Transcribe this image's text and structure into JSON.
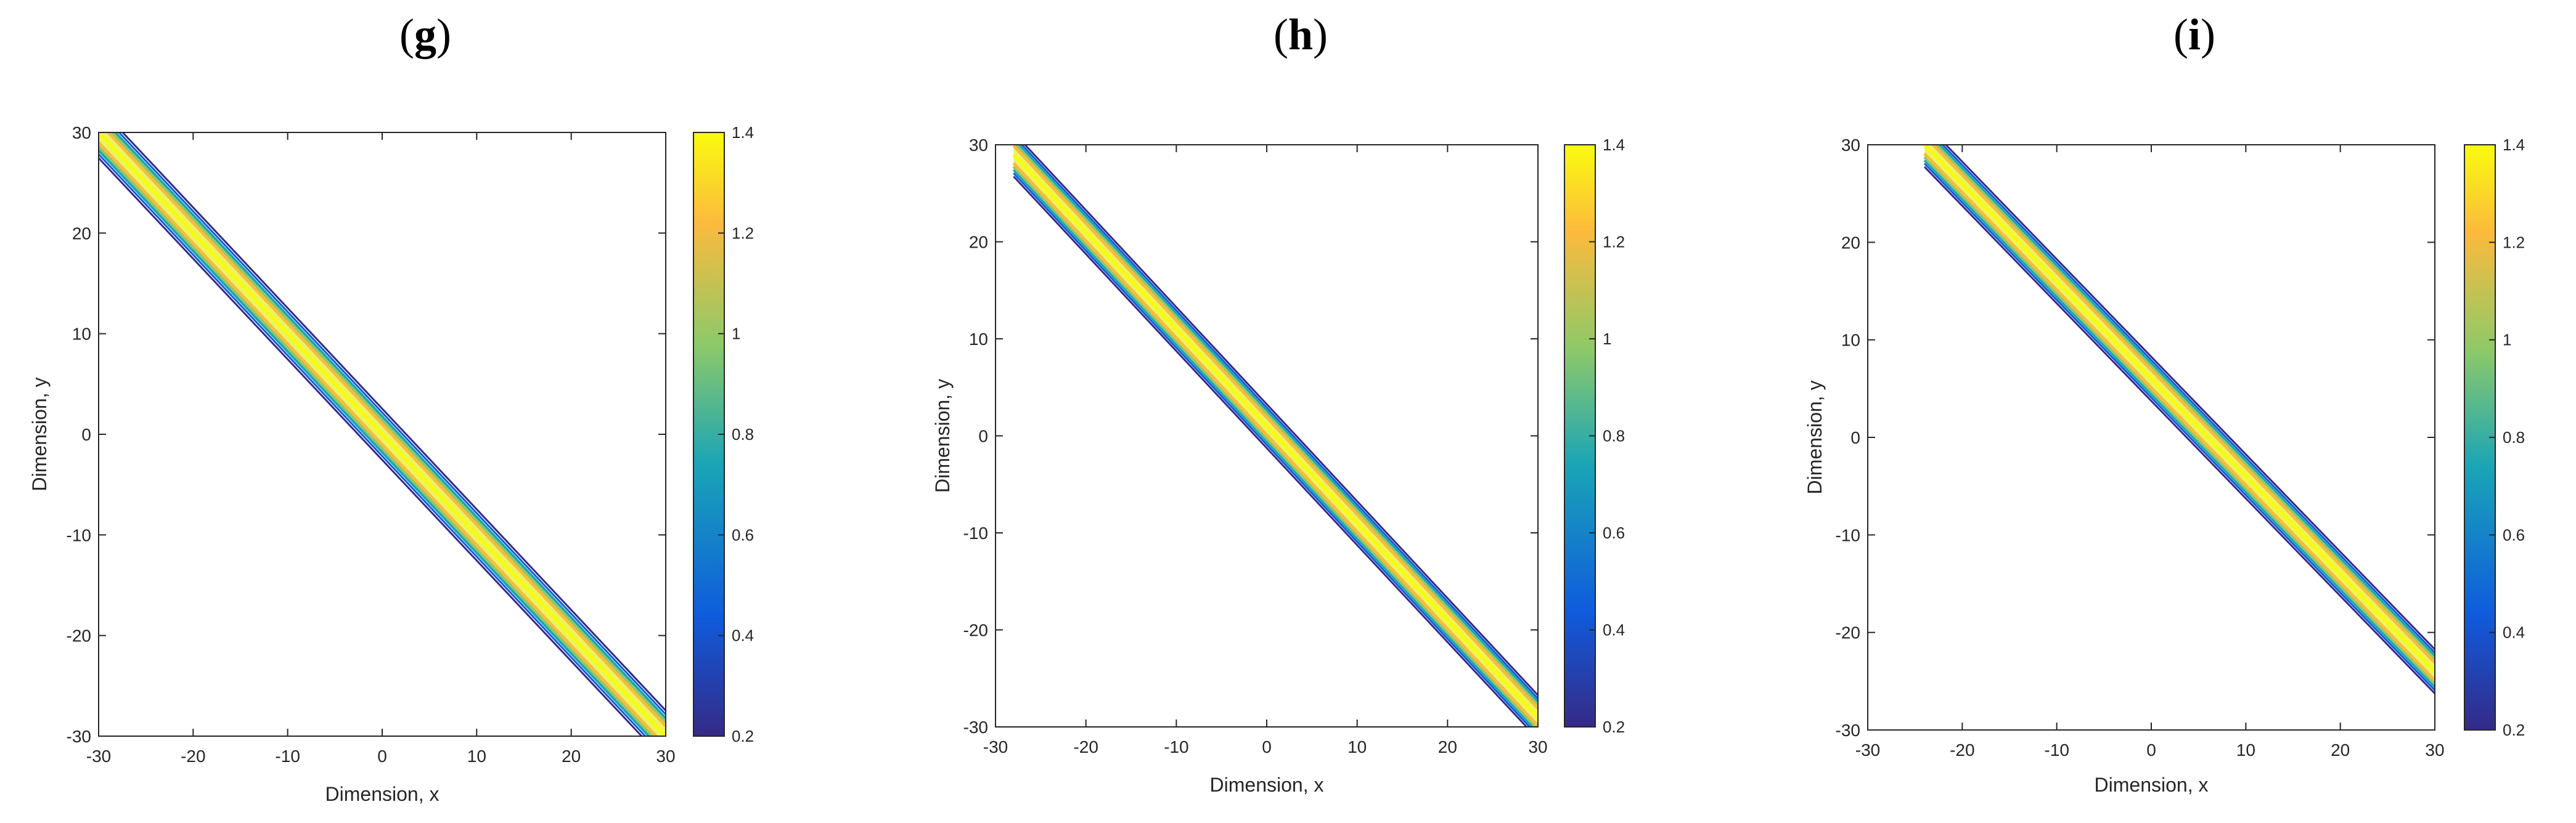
{
  "chart_data": [
    {
      "type": "contour",
      "panel_label_open": "(",
      "panel_label_letter": "g",
      "panel_label_close": ")",
      "xlabel": "Dimension, x",
      "ylabel": "Dimension, y",
      "xlim": [
        -30,
        30
      ],
      "ylim": [
        -30,
        30
      ],
      "xticks": [
        -30,
        -20,
        -10,
        0,
        10,
        20,
        30
      ],
      "yticks": [
        30,
        20,
        10,
        0,
        -10,
        -20,
        -30
      ],
      "colorbar": {
        "range": [
          0.2,
          1.4
        ],
        "ticks": [
          "1.4",
          "1.2",
          "1",
          "0.8",
          "0.6",
          "0.4",
          "0.2"
        ]
      },
      "band": {
        "line": "y = -x",
        "x_start": -30,
        "x_end": 30,
        "y_offset": 0,
        "half_width": 1.8,
        "peak": 1.4
      }
    },
    {
      "type": "contour",
      "panel_label_open": "(",
      "panel_label_letter": "h",
      "panel_label_close": ")",
      "xlabel": "Dimension, x",
      "ylabel": "Dimension, y",
      "xlim": [
        -30,
        30
      ],
      "ylim": [
        -30,
        30
      ],
      "xticks": [
        -30,
        -20,
        -10,
        0,
        10,
        20,
        30
      ],
      "yticks": [
        30,
        20,
        10,
        0,
        -10,
        -20,
        -30
      ],
      "colorbar": {
        "range": [
          0.2,
          1.4
        ],
        "ticks": [
          "1.4",
          "1.2",
          "1",
          "0.8",
          "0.6",
          "0.4",
          "0.2"
        ]
      },
      "band": {
        "line": "y = -x + 1",
        "x_start": -28,
        "x_end": 30,
        "y_offset": 1,
        "half_width": 1.6,
        "peak": 1.4
      }
    },
    {
      "type": "contour",
      "panel_label_open": "(",
      "panel_label_letter": "i",
      "panel_label_close": ")",
      "xlabel": "Dimension, x",
      "ylabel": "Dimension, y",
      "xlim": [
        -30,
        30
      ],
      "ylim": [
        -30,
        30
      ],
      "xticks": [
        -30,
        -20,
        -10,
        0,
        10,
        20,
        30
      ],
      "yticks": [
        30,
        20,
        10,
        0,
        -10,
        -20,
        -30
      ],
      "colorbar": {
        "range": [
          0.2,
          1.4
        ],
        "ticks": [
          "1.4",
          "1.2",
          "1",
          "0.8",
          "0.6",
          "0.4",
          "0.2"
        ]
      },
      "band": {
        "line": "y = -x + 6",
        "x_start": -24,
        "x_end": 30,
        "y_offset": 6,
        "half_width": 1.6,
        "peak": 1.4
      }
    }
  ],
  "colors": {
    "parula_low": "#352a87",
    "parula_midlow": "#0f5cdd",
    "parula_mid": "#1aa5b6",
    "parula_midhigh": "#8ec968",
    "parula_high": "#fcba3d",
    "parula_top": "#f9fb0e"
  }
}
